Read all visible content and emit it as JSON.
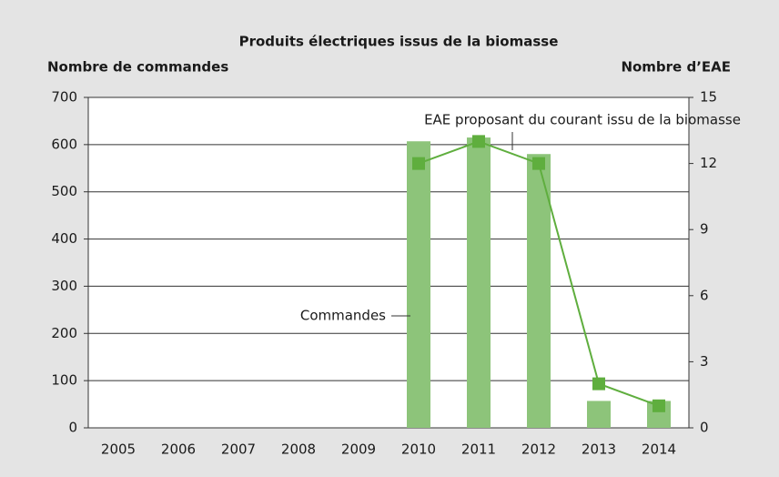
{
  "chart_data": {
    "type": "bar",
    "title": "Produits électriques issus de la biomasse",
    "ylabel": "Nombre de commandes",
    "y2label": "Nombre d’EAE",
    "categories": [
      "2005",
      "2006",
      "2007",
      "2008",
      "2009",
      "2010",
      "2011",
      "2012",
      "2013",
      "2014"
    ],
    "series": [
      {
        "name": "Commandes",
        "type": "bar",
        "color": "#8dc47a",
        "values": [
          null,
          null,
          null,
          null,
          null,
          607,
          615,
          580,
          57,
          57
        ]
      },
      {
        "name": "EAE proposant du courant issu de la biomasse",
        "type": "line",
        "axis": "y2",
        "color": "#5fae3e",
        "values": [
          null,
          null,
          null,
          null,
          null,
          12,
          13,
          12,
          2,
          1
        ]
      }
    ],
    "ylim": [
      0,
      700
    ],
    "yticks": [
      0,
      100,
      200,
      300,
      400,
      500,
      600,
      700
    ],
    "y2lim": [
      0,
      15
    ],
    "y2ticks": [
      0,
      3,
      6,
      9,
      12,
      15
    ],
    "grid": true
  }
}
